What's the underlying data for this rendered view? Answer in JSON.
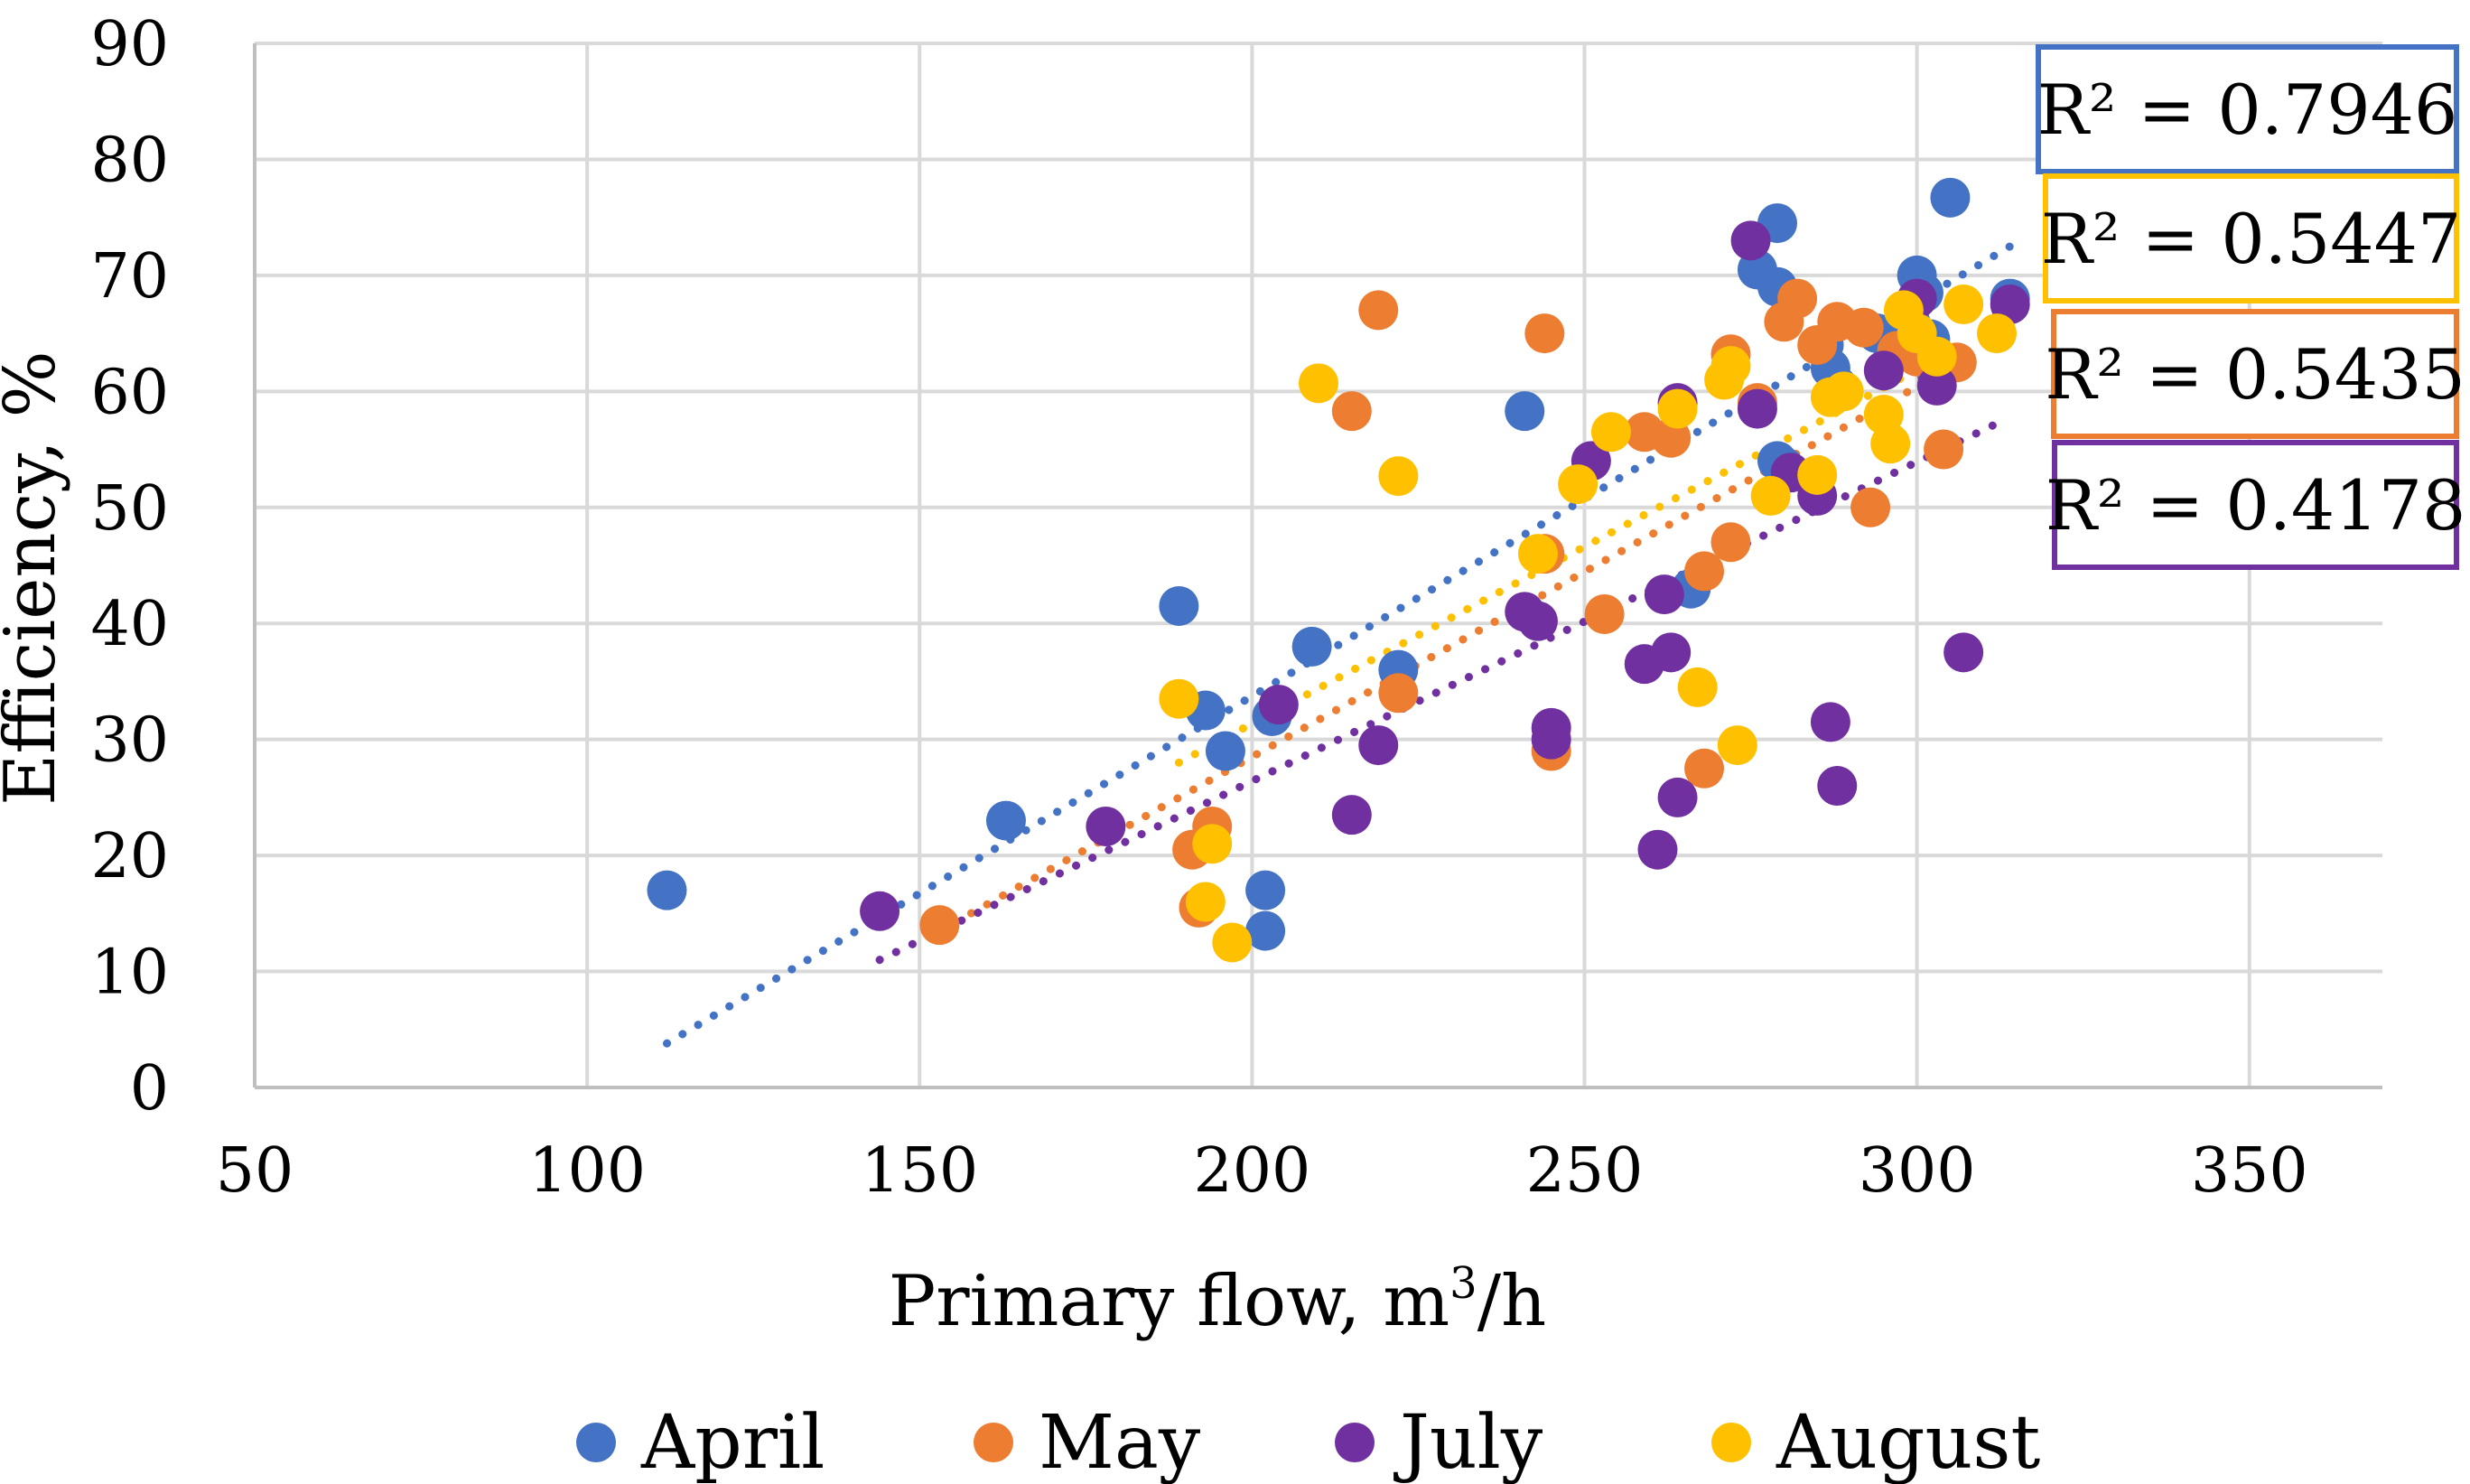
{
  "chart_data": {
    "type": "scatter",
    "xlabel": "Primary flow, m",
    "xlabel_sup": "3",
    "xlabel_suffix": "/h",
    "ylabel": "Efficiency, %",
    "xlim": [
      50,
      370
    ],
    "ylim": [
      0,
      90
    ],
    "x_ticks": [
      "50",
      "100",
      "150",
      "200",
      "250",
      "300",
      "350"
    ],
    "y_ticks": [
      "0",
      "10",
      "20",
      "30",
      "40",
      "50",
      "60",
      "70",
      "80",
      "90"
    ],
    "grid": true,
    "legend_position": "bottom",
    "series": [
      {
        "name": "April",
        "color": "#4472C4",
        "r2_label": "R² = 0.7946",
        "trendline": {
          "x": [
            112,
            314
          ],
          "y": [
            3.8,
            72.5
          ]
        },
        "points": [
          [
            112,
            17
          ],
          [
            163,
            23
          ],
          [
            189,
            41.5
          ],
          [
            193,
            32.5
          ],
          [
            196,
            29
          ],
          [
            202,
            13.5
          ],
          [
            202,
            17
          ],
          [
            203,
            32
          ],
          [
            209,
            38
          ],
          [
            222,
            36
          ],
          [
            241,
            58.3
          ],
          [
            266,
            43
          ],
          [
            276,
            70.5
          ],
          [
            279,
            74.5
          ],
          [
            279,
            69
          ],
          [
            279,
            54
          ],
          [
            280,
            53.5
          ],
          [
            281,
            68
          ],
          [
            287,
            62
          ],
          [
            286,
            64
          ],
          [
            288,
            60.5
          ],
          [
            294,
            65
          ],
          [
            299,
            66
          ],
          [
            300,
            70
          ],
          [
            301,
            68.5
          ],
          [
            302,
            64.5
          ],
          [
            305,
            76.7
          ],
          [
            303,
            61.5
          ],
          [
            314,
            68
          ]
        ]
      },
      {
        "name": "May",
        "color": "#ED7D31",
        "r2_label": "R² = 0.5435",
        "trendline": {
          "x": [
            153,
            305
          ],
          "y": [
            13.5,
            62
          ]
        },
        "points": [
          [
            153,
            14
          ],
          [
            191,
            20.5
          ],
          [
            192,
            15.5
          ],
          [
            194,
            22.5
          ],
          [
            215,
            58.3
          ],
          [
            219,
            67
          ],
          [
            222,
            34
          ],
          [
            244,
            65
          ],
          [
            244,
            46
          ],
          [
            245,
            29
          ],
          [
            253,
            40.8
          ],
          [
            259,
            56.5
          ],
          [
            263,
            56
          ],
          [
            268,
            27.5
          ],
          [
            268,
            44.5
          ],
          [
            272,
            63.2
          ],
          [
            272,
            47
          ],
          [
            276,
            59
          ],
          [
            280,
            66
          ],
          [
            282,
            68
          ],
          [
            285,
            64
          ],
          [
            288,
            66
          ],
          [
            292,
            65.5
          ],
          [
            293,
            50
          ],
          [
            297,
            63.5
          ],
          [
            300,
            63
          ],
          [
            304,
            55
          ],
          [
            306,
            62.5
          ]
        ]
      },
      {
        "name": "July",
        "color": "#7030A0",
        "r2_label": "R² = 0.4178",
        "trendline": {
          "x": [
            144,
            313
          ],
          "y": [
            11,
            57.5
          ]
        },
        "points": [
          [
            144,
            15.2
          ],
          [
            178,
            22.5
          ],
          [
            204,
            33
          ],
          [
            215,
            23.5
          ],
          [
            219,
            29.5
          ],
          [
            241,
            41
          ],
          [
            243,
            40.2
          ],
          [
            245,
            31
          ],
          [
            245,
            30
          ],
          [
            251,
            54
          ],
          [
            259,
            36.5
          ],
          [
            261,
            20.5
          ],
          [
            262,
            42.5
          ],
          [
            263,
            37.5
          ],
          [
            264,
            25
          ],
          [
            264,
            59
          ],
          [
            275,
            73
          ],
          [
            276,
            58.5
          ],
          [
            281,
            53
          ],
          [
            285,
            51
          ],
          [
            287,
            31.5
          ],
          [
            288,
            26
          ],
          [
            295,
            61.8
          ],
          [
            300,
            68
          ],
          [
            303,
            60.5
          ],
          [
            307,
            37.5
          ],
          [
            314,
            67.5
          ]
        ]
      },
      {
        "name": "August",
        "color": "#FFC000",
        "r2_label": "R² = 0.5447",
        "trendline": {
          "x": [
            189,
            307
          ],
          "y": [
            28,
            64
          ]
        },
        "points": [
          [
            189,
            33.5
          ],
          [
            193,
            16
          ],
          [
            194,
            21
          ],
          [
            197,
            12.5
          ],
          [
            210,
            60.7
          ],
          [
            222,
            52.7
          ],
          [
            243,
            46
          ],
          [
            249,
            52
          ],
          [
            254,
            56.5
          ],
          [
            264,
            58.5
          ],
          [
            267,
            34.5
          ],
          [
            271,
            61
          ],
          [
            272,
            62.2
          ],
          [
            273,
            29.5
          ],
          [
            278,
            51
          ],
          [
            285,
            52.8
          ],
          [
            287,
            59.5
          ],
          [
            289,
            60
          ],
          [
            295,
            58
          ],
          [
            296,
            55.5
          ],
          [
            298,
            67
          ],
          [
            300,
            65
          ],
          [
            303,
            63
          ],
          [
            307,
            67.5
          ],
          [
            312,
            65
          ]
        ]
      }
    ],
    "r2_boxes_order": [
      "April",
      "August",
      "May",
      "July"
    ]
  }
}
